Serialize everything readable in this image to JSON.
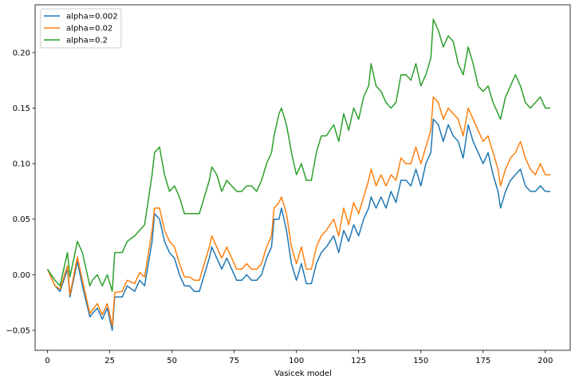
{
  "chart_data": {
    "type": "line",
    "title": "",
    "xlabel": "Vasicek model",
    "ylabel": "",
    "xlim": [
      -5,
      210
    ],
    "ylim": [
      -0.068,
      0.243
    ],
    "x_ticks": [
      0,
      25,
      50,
      75,
      100,
      125,
      150,
      175,
      200
    ],
    "y_ticks": [
      -0.05,
      0.0,
      0.05,
      0.1,
      0.15,
      0.2
    ],
    "y_tick_labels": [
      "−0.05",
      "0.00",
      "0.05",
      "0.10",
      "0.15",
      "0.20"
    ],
    "grid": false,
    "legend_position": "upper-left",
    "series": [
      {
        "name": "alpha=0.002",
        "color": "#1f77b4",
        "points": [
          [
            0,
            0.005
          ],
          [
            3,
            -0.01
          ],
          [
            5,
            -0.015
          ],
          [
            8,
            0.005
          ],
          [
            9,
            -0.02
          ],
          [
            12,
            0.012
          ],
          [
            14,
            -0.01
          ],
          [
            17,
            -0.038
          ],
          [
            18,
            -0.035
          ],
          [
            20,
            -0.03
          ],
          [
            22,
            -0.04
          ],
          [
            24,
            -0.03
          ],
          [
            26,
            -0.05
          ],
          [
            27,
            -0.02
          ],
          [
            30,
            -0.02
          ],
          [
            32,
            -0.01
          ],
          [
            35,
            -0.015
          ],
          [
            37,
            -0.005
          ],
          [
            39,
            -0.01
          ],
          [
            42,
            0.03
          ],
          [
            43,
            0.055
          ],
          [
            45,
            0.05
          ],
          [
            47,
            0.03
          ],
          [
            49,
            0.02
          ],
          [
            51,
            0.015
          ],
          [
            53,
            0.0
          ],
          [
            55,
            -0.01
          ],
          [
            57,
            -0.01
          ],
          [
            59,
            -0.015
          ],
          [
            61,
            -0.015
          ],
          [
            63,
            0.0
          ],
          [
            65,
            0.015
          ],
          [
            66,
            0.025
          ],
          [
            68,
            0.015
          ],
          [
            70,
            0.005
          ],
          [
            72,
            0.015
          ],
          [
            74,
            0.005
          ],
          [
            76,
            -0.005
          ],
          [
            78,
            -0.005
          ],
          [
            80,
            0.0
          ],
          [
            82,
            -0.005
          ],
          [
            84,
            -0.005
          ],
          [
            86,
            0.0
          ],
          [
            88,
            0.015
          ],
          [
            90,
            0.025
          ],
          [
            91,
            0.05
          ],
          [
            93,
            0.05
          ],
          [
            94,
            0.06
          ],
          [
            96,
            0.04
          ],
          [
            98,
            0.01
          ],
          [
            100,
            -0.005
          ],
          [
            102,
            0.01
          ],
          [
            104,
            -0.008
          ],
          [
            106,
            -0.008
          ],
          [
            108,
            0.01
          ],
          [
            110,
            0.02
          ],
          [
            112,
            0.025
          ],
          [
            115,
            0.035
          ],
          [
            117,
            0.02
          ],
          [
            119,
            0.04
          ],
          [
            121,
            0.03
          ],
          [
            123,
            0.045
          ],
          [
            125,
            0.035
          ],
          [
            127,
            0.05
          ],
          [
            129,
            0.06
          ],
          [
            130,
            0.07
          ],
          [
            132,
            0.06
          ],
          [
            134,
            0.07
          ],
          [
            136,
            0.06
          ],
          [
            138,
            0.075
          ],
          [
            140,
            0.065
          ],
          [
            142,
            0.085
          ],
          [
            144,
            0.085
          ],
          [
            146,
            0.08
          ],
          [
            148,
            0.095
          ],
          [
            150,
            0.08
          ],
          [
            152,
            0.1
          ],
          [
            154,
            0.11
          ],
          [
            155,
            0.14
          ],
          [
            157,
            0.135
          ],
          [
            159,
            0.12
          ],
          [
            161,
            0.135
          ],
          [
            163,
            0.125
          ],
          [
            165,
            0.12
          ],
          [
            167,
            0.105
          ],
          [
            169,
            0.135
          ],
          [
            171,
            0.12
          ],
          [
            173,
            0.11
          ],
          [
            175,
            0.1
          ],
          [
            177,
            0.11
          ],
          [
            179,
            0.09
          ],
          [
            181,
            0.075
          ],
          [
            182,
            0.06
          ],
          [
            184,
            0.075
          ],
          [
            186,
            0.085
          ],
          [
            188,
            0.09
          ],
          [
            190,
            0.095
          ],
          [
            192,
            0.08
          ],
          [
            194,
            0.075
          ],
          [
            196,
            0.075
          ],
          [
            198,
            0.08
          ],
          [
            200,
            0.075
          ],
          [
            202,
            0.075
          ]
        ]
      },
      {
        "name": "alpha=0.02",
        "color": "#ff7f0e",
        "points": [
          [
            0,
            0.005
          ],
          [
            3,
            -0.01
          ],
          [
            5,
            -0.013
          ],
          [
            8,
            0.008
          ],
          [
            9,
            -0.018
          ],
          [
            12,
            0.016
          ],
          [
            14,
            -0.005
          ],
          [
            17,
            -0.035
          ],
          [
            18,
            -0.032
          ],
          [
            20,
            -0.026
          ],
          [
            22,
            -0.036
          ],
          [
            24,
            -0.026
          ],
          [
            26,
            -0.046
          ],
          [
            27,
            -0.016
          ],
          [
            30,
            -0.015
          ],
          [
            32,
            -0.005
          ],
          [
            35,
            -0.008
          ],
          [
            37,
            0.002
          ],
          [
            39,
            -0.002
          ],
          [
            42,
            0.04
          ],
          [
            43,
            0.06
          ],
          [
            45,
            0.06
          ],
          [
            47,
            0.04
          ],
          [
            49,
            0.03
          ],
          [
            51,
            0.025
          ],
          [
            53,
            0.01
          ],
          [
            55,
            -0.002
          ],
          [
            57,
            -0.002
          ],
          [
            59,
            -0.005
          ],
          [
            61,
            -0.005
          ],
          [
            63,
            0.01
          ],
          [
            65,
            0.025
          ],
          [
            66,
            0.035
          ],
          [
            68,
            0.025
          ],
          [
            70,
            0.015
          ],
          [
            72,
            0.025
          ],
          [
            74,
            0.015
          ],
          [
            76,
            0.005
          ],
          [
            78,
            0.005
          ],
          [
            80,
            0.01
          ],
          [
            82,
            0.005
          ],
          [
            84,
            0.005
          ],
          [
            86,
            0.01
          ],
          [
            88,
            0.025
          ],
          [
            90,
            0.035
          ],
          [
            91,
            0.06
          ],
          [
            93,
            0.065
          ],
          [
            94,
            0.07
          ],
          [
            96,
            0.055
          ],
          [
            98,
            0.025
          ],
          [
            100,
            0.01
          ],
          [
            102,
            0.025
          ],
          [
            104,
            0.005
          ],
          [
            106,
            0.005
          ],
          [
            108,
            0.025
          ],
          [
            110,
            0.035
          ],
          [
            112,
            0.04
          ],
          [
            115,
            0.05
          ],
          [
            117,
            0.035
          ],
          [
            119,
            0.06
          ],
          [
            121,
            0.045
          ],
          [
            123,
            0.065
          ],
          [
            125,
            0.055
          ],
          [
            127,
            0.07
          ],
          [
            129,
            0.085
          ],
          [
            130,
            0.095
          ],
          [
            132,
            0.08
          ],
          [
            134,
            0.09
          ],
          [
            136,
            0.08
          ],
          [
            138,
            0.09
          ],
          [
            140,
            0.085
          ],
          [
            142,
            0.105
          ],
          [
            144,
            0.1
          ],
          [
            146,
            0.1
          ],
          [
            148,
            0.115
          ],
          [
            150,
            0.1
          ],
          [
            152,
            0.115
          ],
          [
            154,
            0.13
          ],
          [
            155,
            0.16
          ],
          [
            157,
            0.155
          ],
          [
            159,
            0.14
          ],
          [
            161,
            0.15
          ],
          [
            163,
            0.145
          ],
          [
            165,
            0.14
          ],
          [
            167,
            0.125
          ],
          [
            169,
            0.15
          ],
          [
            171,
            0.14
          ],
          [
            173,
            0.13
          ],
          [
            175,
            0.12
          ],
          [
            177,
            0.125
          ],
          [
            179,
            0.11
          ],
          [
            181,
            0.095
          ],
          [
            182,
            0.08
          ],
          [
            184,
            0.095
          ],
          [
            186,
            0.105
          ],
          [
            188,
            0.11
          ],
          [
            190,
            0.12
          ],
          [
            192,
            0.105
          ],
          [
            194,
            0.095
          ],
          [
            196,
            0.09
          ],
          [
            198,
            0.1
          ],
          [
            200,
            0.09
          ],
          [
            202,
            0.09
          ]
        ]
      },
      {
        "name": "alpha=0.2",
        "color": "#2ca02c",
        "points": [
          [
            0,
            0.005
          ],
          [
            3,
            -0.005
          ],
          [
            5,
            -0.01
          ],
          [
            8,
            0.02
          ],
          [
            9,
            -0.002
          ],
          [
            12,
            0.03
          ],
          [
            14,
            0.02
          ],
          [
            17,
            -0.01
          ],
          [
            18,
            -0.005
          ],
          [
            20,
            0.0
          ],
          [
            22,
            -0.01
          ],
          [
            24,
            0.0
          ],
          [
            26,
            -0.015
          ],
          [
            27,
            0.02
          ],
          [
            30,
            0.02
          ],
          [
            32,
            0.03
          ],
          [
            35,
            0.035
          ],
          [
            37,
            0.04
          ],
          [
            39,
            0.045
          ],
          [
            42,
            0.09
          ],
          [
            43,
            0.11
          ],
          [
            45,
            0.115
          ],
          [
            47,
            0.09
          ],
          [
            49,
            0.075
          ],
          [
            51,
            0.08
          ],
          [
            53,
            0.07
          ],
          [
            55,
            0.055
          ],
          [
            57,
            0.055
          ],
          [
            59,
            0.055
          ],
          [
            61,
            0.055
          ],
          [
            63,
            0.07
          ],
          [
            65,
            0.085
          ],
          [
            66,
            0.097
          ],
          [
            68,
            0.09
          ],
          [
            70,
            0.075
          ],
          [
            72,
            0.085
          ],
          [
            74,
            0.08
          ],
          [
            76,
            0.075
          ],
          [
            78,
            0.075
          ],
          [
            80,
            0.08
          ],
          [
            82,
            0.08
          ],
          [
            84,
            0.075
          ],
          [
            86,
            0.085
          ],
          [
            88,
            0.1
          ],
          [
            90,
            0.11
          ],
          [
            91,
            0.125
          ],
          [
            93,
            0.145
          ],
          [
            94,
            0.15
          ],
          [
            96,
            0.135
          ],
          [
            98,
            0.11
          ],
          [
            100,
            0.09
          ],
          [
            102,
            0.1
          ],
          [
            104,
            0.085
          ],
          [
            106,
            0.085
          ],
          [
            108,
            0.11
          ],
          [
            110,
            0.125
          ],
          [
            112,
            0.125
          ],
          [
            115,
            0.135
          ],
          [
            117,
            0.12
          ],
          [
            119,
            0.145
          ],
          [
            121,
            0.13
          ],
          [
            123,
            0.15
          ],
          [
            125,
            0.14
          ],
          [
            127,
            0.16
          ],
          [
            129,
            0.17
          ],
          [
            130,
            0.19
          ],
          [
            132,
            0.17
          ],
          [
            134,
            0.165
          ],
          [
            136,
            0.155
          ],
          [
            138,
            0.15
          ],
          [
            140,
            0.155
          ],
          [
            142,
            0.18
          ],
          [
            144,
            0.18
          ],
          [
            146,
            0.175
          ],
          [
            148,
            0.19
          ],
          [
            150,
            0.17
          ],
          [
            152,
            0.18
          ],
          [
            154,
            0.195
          ],
          [
            155,
            0.23
          ],
          [
            157,
            0.22
          ],
          [
            159,
            0.205
          ],
          [
            161,
            0.215
          ],
          [
            163,
            0.21
          ],
          [
            165,
            0.19
          ],
          [
            167,
            0.18
          ],
          [
            169,
            0.205
          ],
          [
            171,
            0.19
          ],
          [
            173,
            0.17
          ],
          [
            175,
            0.165
          ],
          [
            177,
            0.17
          ],
          [
            179,
            0.155
          ],
          [
            181,
            0.145
          ],
          [
            182,
            0.14
          ],
          [
            184,
            0.16
          ],
          [
            186,
            0.17
          ],
          [
            188,
            0.18
          ],
          [
            190,
            0.17
          ],
          [
            192,
            0.155
          ],
          [
            194,
            0.15
          ],
          [
            196,
            0.155
          ],
          [
            198,
            0.16
          ],
          [
            200,
            0.15
          ],
          [
            202,
            0.15
          ]
        ]
      }
    ]
  }
}
